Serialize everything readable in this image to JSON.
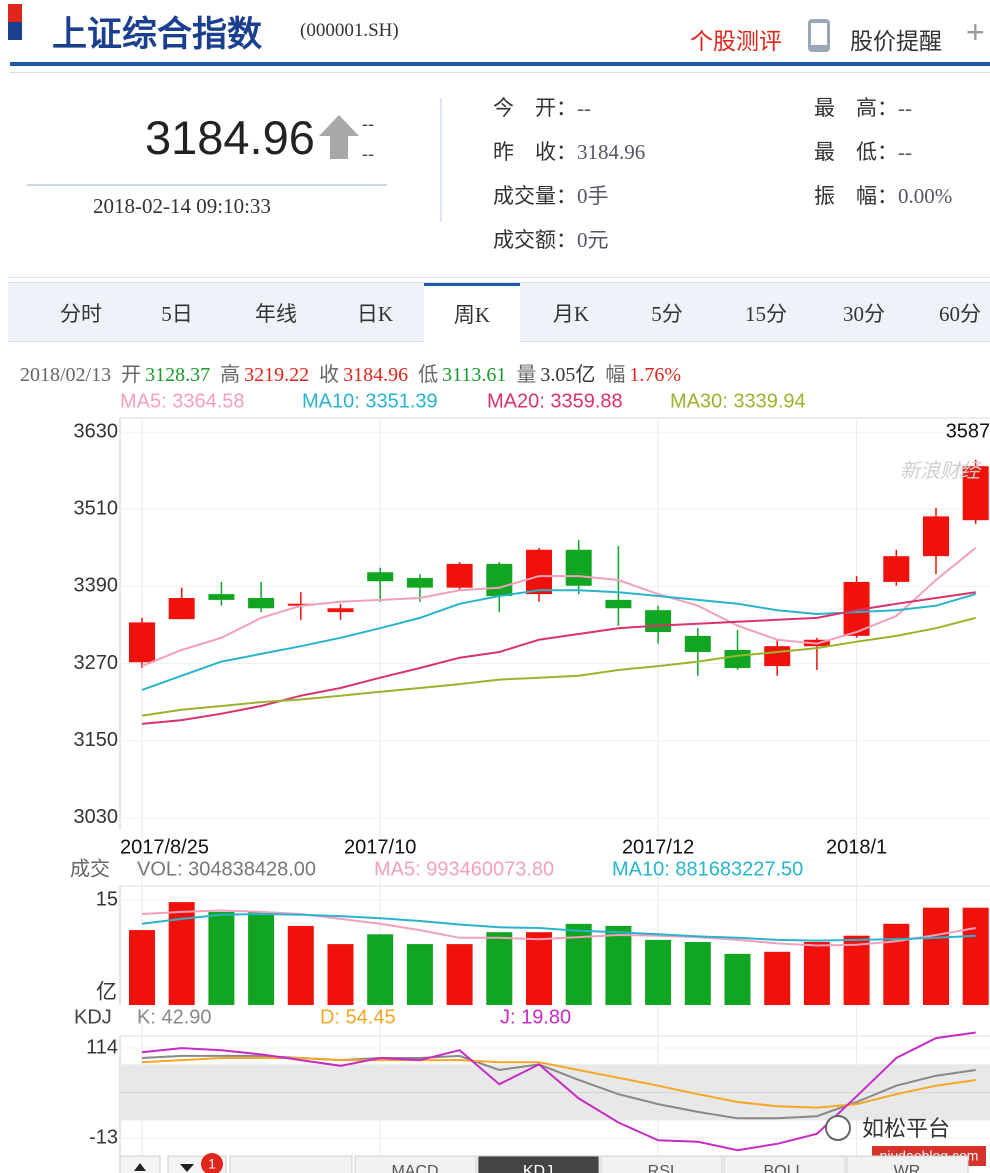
{
  "header": {
    "title": "上证综合指数",
    "code": "(000001.SH)",
    "links": [
      "个股测评",
      "股价提醒",
      "+"
    ]
  },
  "quote": {
    "price": "3184.96",
    "change": "--",
    "change_pct": "--",
    "time": "2018-02-14 09:10:33",
    "stats_left": [
      {
        "label": "今　开：",
        "value": "--"
      },
      {
        "label": "昨　收：",
        "value": "3184.96"
      },
      {
        "label": "成交量：",
        "value": "0手"
      },
      {
        "label": "成交额：",
        "value": "0元"
      }
    ],
    "stats_right": [
      {
        "label": "最　高：",
        "value": "--"
      },
      {
        "label": "最　低：",
        "value": "--"
      },
      {
        "label": "振　幅：",
        "value": "0.00%"
      }
    ]
  },
  "tabs": {
    "items": [
      "分时",
      "5日",
      "年线",
      "日K",
      "周K",
      "月K",
      "5分",
      "15分",
      "30分",
      "60分"
    ],
    "active": 4
  },
  "chart_data": [
    {
      "type": "candlestick",
      "summary": {
        "date": "2018/02/13",
        "items": [
          {
            "label": "开",
            "value": "3128.37",
            "color": "#1a9a2a"
          },
          {
            "label": "高",
            "value": "3219.22",
            "color": "#e0251b"
          },
          {
            "label": "收",
            "value": "3184.96",
            "color": "#e0251b"
          },
          {
            "label": "低",
            "value": "3113.61",
            "color": "#1a9a2a"
          },
          {
            "label": "量",
            "value": "3.05亿",
            "color": "#333333"
          },
          {
            "label": "幅",
            "value": "1.76%",
            "color": "#e0251b"
          }
        ]
      },
      "categories": [
        "2017/8/25",
        null,
        null,
        null,
        null,
        null,
        "2017/10",
        null,
        null,
        null,
        null,
        null,
        null,
        "2017/12",
        null,
        null,
        null,
        null,
        "2018/1",
        null,
        null,
        null
      ],
      "open": [
        3272,
        3339,
        3378,
        3372,
        3360,
        3350,
        3412,
        3403,
        3388,
        3425,
        3378,
        3447,
        3369,
        3353,
        3313,
        3291,
        3266,
        3297,
        3313,
        3397,
        3437,
        3493
      ],
      "high": [
        3341,
        3388,
        3397,
        3397,
        3381,
        3363,
        3419,
        3409,
        3428,
        3428,
        3450,
        3462,
        3453,
        3360,
        3325,
        3322,
        3307,
        3310,
        3406,
        3447,
        3512,
        3587
      ],
      "low": [
        3263,
        3339,
        3360,
        3350,
        3338,
        3338,
        3366,
        3366,
        3385,
        3350,
        3366,
        3378,
        3329,
        3301,
        3251,
        3260,
        3251,
        3260,
        3310,
        3391,
        3409,
        3487
      ],
      "close": [
        3334,
        3372,
        3369,
        3356,
        3363,
        3356,
        3398,
        3388,
        3425,
        3375,
        3447,
        3391,
        3356,
        3319,
        3288,
        3263,
        3297,
        3307,
        3397,
        3437,
        3499,
        3577
      ],
      "up_color": "#f0120a",
      "down_color": "#11a622",
      "max_label": "3587",
      "series": [
        {
          "name": "MA5: 3364.58",
          "color": "#f2a0bc",
          "values": [
            3266,
            3291,
            3310,
            3341,
            3360,
            3366,
            3369,
            3372,
            3384,
            3388,
            3406,
            3406,
            3400,
            3378,
            3360,
            3329,
            3307,
            3301,
            3319,
            3344,
            3400,
            3450
          ]
        },
        {
          "name": "MA10: 3351.39",
          "color": "#27b4cc",
          "values": [
            3229,
            3251,
            3273,
            3285,
            3297,
            3310,
            3325,
            3341,
            3363,
            3375,
            3384,
            3384,
            3381,
            3375,
            3369,
            3363,
            3353,
            3347,
            3350,
            3353,
            3360,
            3378
          ]
        },
        {
          "name": "MA20: 3359.88",
          "color": "#d9336b",
          "values": [
            3176,
            3182,
            3192,
            3204,
            3220,
            3232,
            3248,
            3263,
            3279,
            3288,
            3307,
            3316,
            3325,
            3329,
            3332,
            3335,
            3338,
            3341,
            3353,
            3363,
            3372,
            3381
          ]
        },
        {
          "name": "MA30: 3339.94",
          "color": "#9ab42c",
          "values": [
            3189,
            3198,
            3204,
            3210,
            3214,
            3220,
            3226,
            3232,
            3238,
            3245,
            3248,
            3251,
            3260,
            3266,
            3273,
            3282,
            3288,
            3294,
            3304,
            3313,
            3325,
            3341
          ]
        }
      ],
      "ylim": [
        3011,
        3652
      ],
      "yticks": [
        3630,
        3510,
        3390,
        3270,
        3150,
        3030
      ],
      "grid": true
    },
    {
      "type": "bar",
      "label": "成交",
      "unit": "亿",
      "series": [
        {
          "name": "VOL: 304838428.00",
          "values": [
            10.7,
            14.7,
            13.3,
            13.3,
            11.3,
            8.7,
            10.1,
            8.7,
            8.7,
            10.4,
            10.4,
            11.6,
            11.3,
            9.3,
            9.0,
            7.3,
            7.6,
            9.0,
            9.9,
            11.6,
            13.9,
            13.9
          ]
        },
        {
          "name": "MA5: 993460073.80",
          "color": "#f2a0bc",
          "values": [
            13.0,
            13.3,
            13.5,
            13.3,
            13.0,
            12.3,
            11.6,
            10.7,
            9.6,
            9.6,
            9.4,
            9.7,
            10.0,
            9.9,
            9.7,
            9.3,
            8.8,
            8.5,
            8.6,
            9.1,
            10.0,
            11.0
          ]
        },
        {
          "name": "MA10: 881683227.50",
          "color": "#27b4cc",
          "values": [
            11.6,
            12.3,
            12.9,
            13.0,
            12.9,
            12.7,
            12.4,
            12.0,
            11.5,
            11.1,
            11.0,
            10.6,
            10.4,
            10.1,
            9.8,
            9.6,
            9.3,
            9.2,
            9.3,
            9.4,
            9.6,
            9.9
          ]
        }
      ],
      "ylim": [
        0,
        17
      ],
      "yticks": [
        15
      ]
    },
    {
      "type": "line",
      "label": "KDJ",
      "series": [
        {
          "name": "K: 42.90",
          "color": "#888888",
          "values": [
            100,
            103,
            103,
            103,
            100,
            97,
            100,
            100,
            103,
            83,
            91,
            69,
            49,
            35,
            24,
            15,
            15,
            18,
            38,
            61,
            75,
            83
          ]
        },
        {
          "name": "D: 54.45",
          "color": "#f5a623",
          "values": [
            94,
            97,
            100,
            100,
            100,
            97,
            97,
            97,
            97,
            94,
            94,
            83,
            72,
            61,
            49,
            38,
            32,
            30,
            35,
            49,
            61,
            69
          ]
        },
        {
          "name": "J: 19.80",
          "color": "#c72ac7",
          "values": [
            108,
            114,
            111,
            105,
            97,
            89,
            100,
            97,
            111,
            63,
            91,
            43,
            9,
            -16,
            -18,
            -30,
            -21,
            -7,
            46,
            100,
            128,
            136
          ]
        }
      ],
      "band": [
        91,
        12
      ],
      "ylim": [
        -41,
        131
      ],
      "yticks": [
        114,
        -13
      ]
    }
  ],
  "bottom_tabs": {
    "items": [
      "MACD",
      "KDJ",
      "RSI",
      "BOLL",
      "WR"
    ],
    "active": 1,
    "badge": "1"
  },
  "watermarks": [
    "新浪财经",
    "如松平台",
    "niudaoblog.com"
  ]
}
